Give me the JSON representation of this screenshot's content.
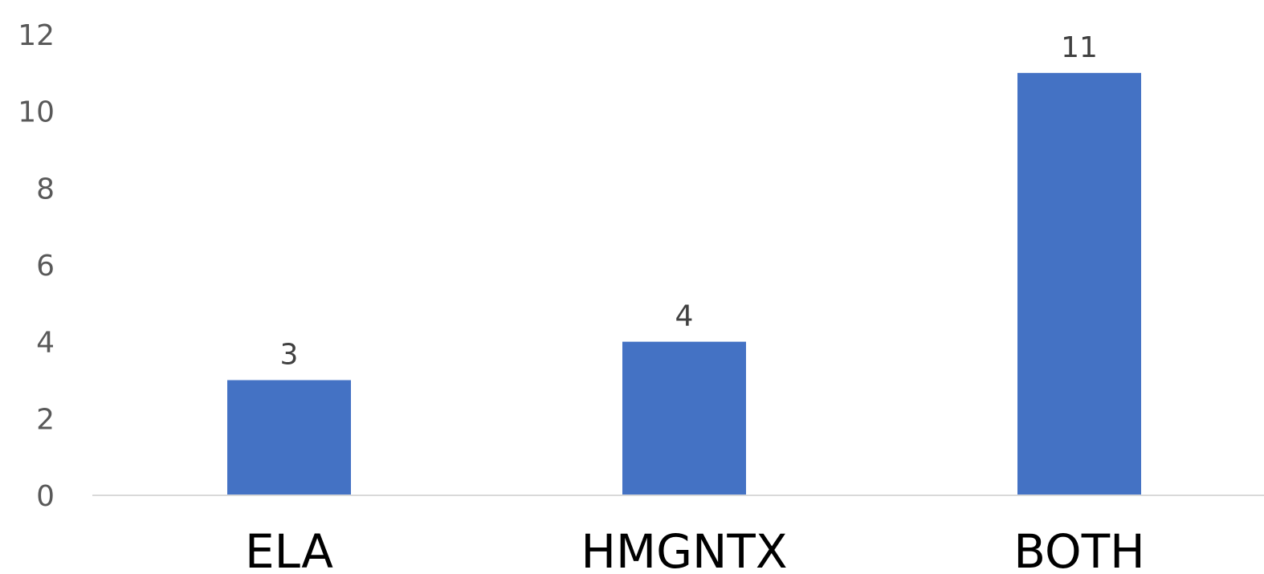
{
  "chart_data": {
    "type": "bar",
    "categories": [
      "ELA",
      "HMGNTX",
      "BOTH"
    ],
    "values": [
      3,
      4,
      11
    ],
    "data_labels": [
      "3",
      "4",
      "11"
    ],
    "title": "",
    "xlabel": "",
    "ylabel": "",
    "ylim": [
      0,
      12
    ],
    "yticks": [
      "0",
      "2",
      "4",
      "6",
      "8",
      "10",
      "12"
    ],
    "grid": false,
    "legend": "none",
    "bar_color": "#4472C4",
    "axis_color": "#D9D9D9"
  }
}
